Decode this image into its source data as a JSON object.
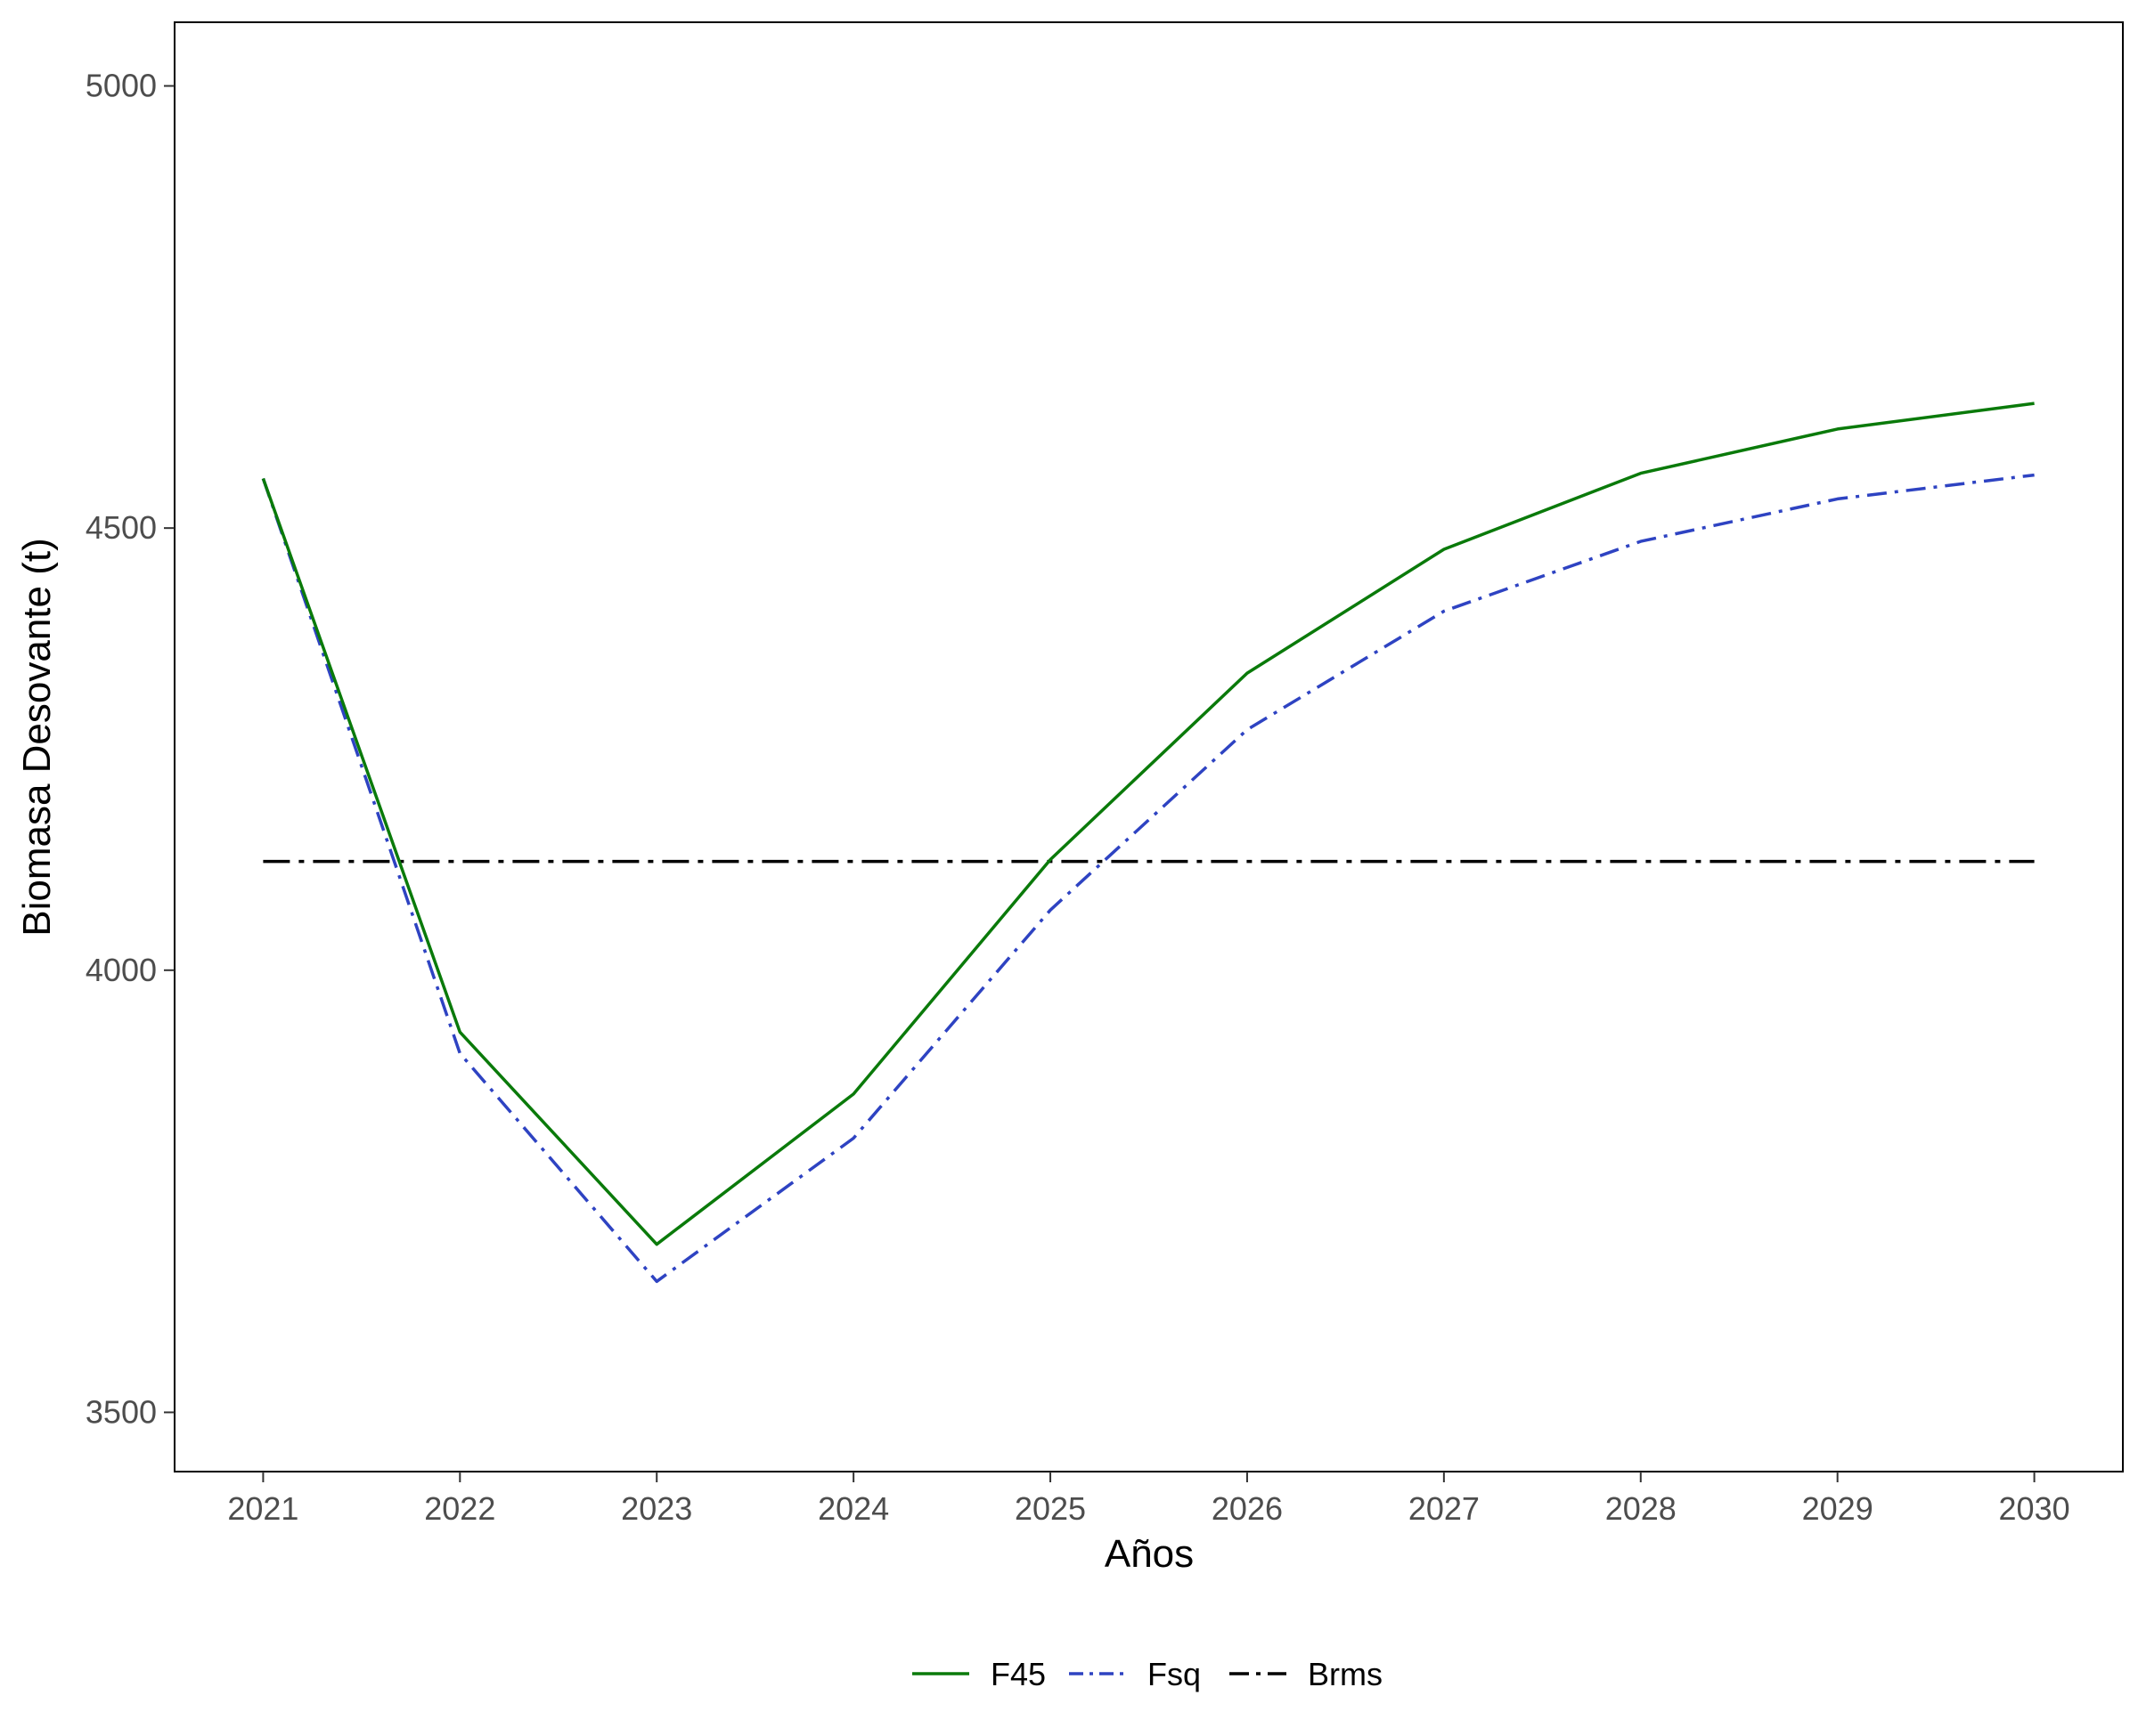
{
  "chart_data": {
    "type": "line",
    "title": "",
    "xlabel": "Años",
    "ylabel": "Biomasa Desovante (t)",
    "x": [
      2021,
      2022,
      2023,
      2024,
      2025,
      2026,
      2027,
      2028,
      2029,
      2030
    ],
    "xlim": [
      2020.55,
      2030.45
    ],
    "ylim": [
      3433,
      5072
    ],
    "yticks": [
      3500,
      4000,
      4500,
      5000
    ],
    "xticks": [
      2021,
      2022,
      2023,
      2024,
      2025,
      2026,
      2027,
      2028,
      2029,
      2030
    ],
    "grid": false,
    "legend_position": "bottom",
    "series": [
      {
        "name": "F45",
        "color": "#0a7a0a",
        "dash": "solid",
        "values": [
          4556,
          3930,
          3690,
          3860,
          4125,
          4336,
          4476,
          4562,
          4612,
          4641
        ]
      },
      {
        "name": "Fsq",
        "color": "#2e43c2",
        "dash": "dashdot",
        "values": [
          4556,
          3906,
          3648,
          3810,
          4068,
          4272,
          4406,
          4485,
          4533,
          4560
        ]
      },
      {
        "name": "Brms",
        "color": "#000000",
        "dash": "longdashdot",
        "values": [
          4123,
          4123,
          4123,
          4123,
          4123,
          4123,
          4123,
          4123,
          4123,
          4123
        ]
      }
    ]
  }
}
